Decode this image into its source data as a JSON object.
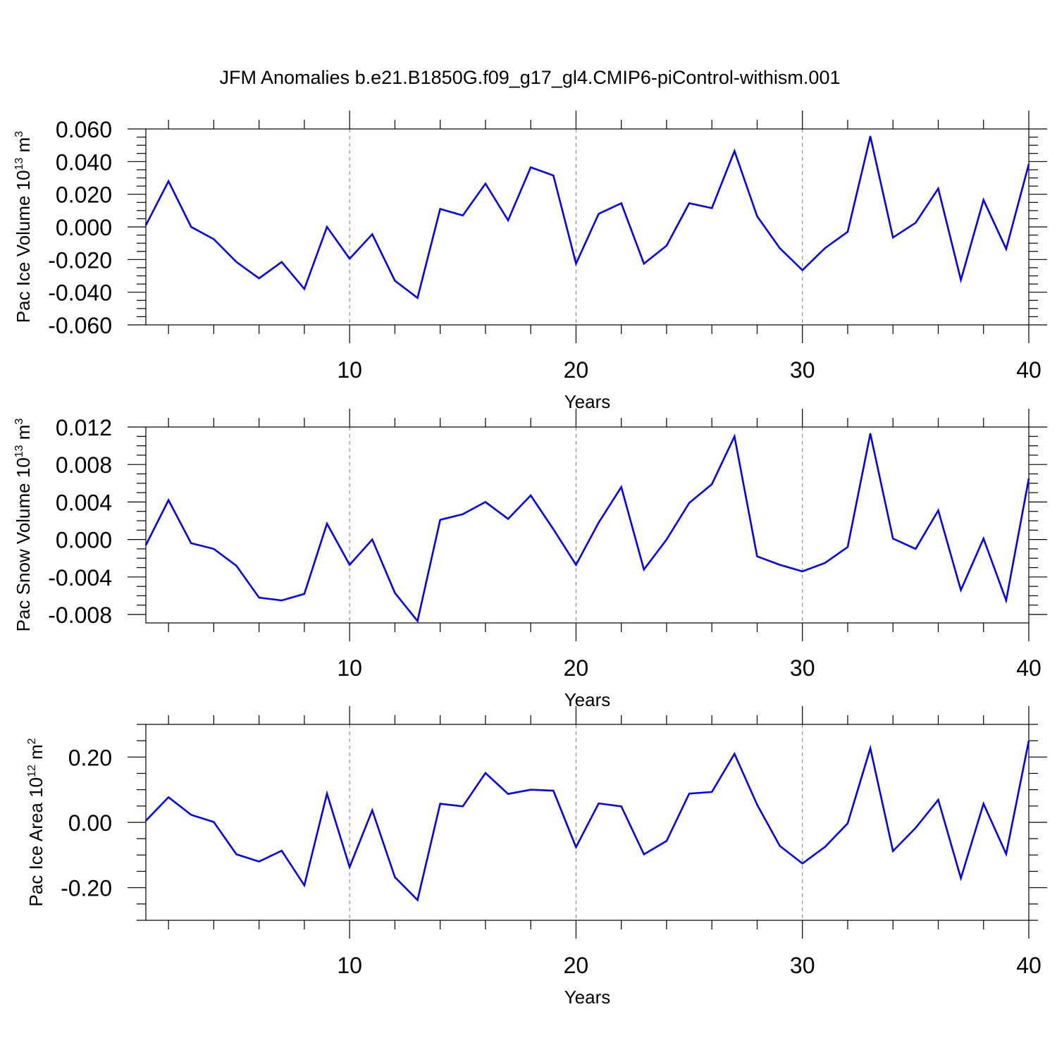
{
  "chart_data": {
    "title": "JFM Anomalies b.e21.B1850G.f09_g17_gl4.CMIP6-piControl-withism.001",
    "line_color": "#0000ff",
    "x": [
      1,
      2,
      3,
      4,
      5,
      6,
      7,
      8,
      9,
      10,
      11,
      12,
      13,
      14,
      15,
      16,
      17,
      18,
      19,
      20,
      21,
      22,
      23,
      24,
      25,
      26,
      27,
      28,
      29,
      30,
      31,
      32,
      33,
      34,
      35,
      36,
      37,
      38,
      39,
      40
    ],
    "panels": [
      {
        "type": "line",
        "xlabel": "Years",
        "ylabel": {
          "text": "Pac Ice Volume 10",
          "sup1": "13",
          "mid": " m",
          "sup2": "3"
        },
        "xlim": [
          1,
          40
        ],
        "xticks": [
          10,
          20,
          30,
          40
        ],
        "xtick_labels": [
          "10",
          "20",
          "30",
          "40"
        ],
        "ylim": [
          -0.06,
          0.06
        ],
        "yticks": [
          -0.06,
          -0.04,
          -0.02,
          0.0,
          0.02,
          0.04,
          0.06
        ],
        "ytick_labels": [
          "-0.060",
          "-0.040",
          "-0.020",
          "0.000",
          "0.020",
          "0.040",
          "0.060"
        ],
        "yminor_step": 0.005,
        "series": [
          {
            "values": [
              0.001,
              0.028,
              0.0,
              -0.0075,
              -0.0215,
              -0.0315,
              -0.0215,
              -0.038,
              0.0,
              -0.0195,
              -0.0045,
              -0.033,
              -0.0435,
              0.011,
              0.007,
              0.0265,
              0.004,
              0.0365,
              0.0315,
              -0.0225,
              0.008,
              0.0145,
              -0.0225,
              -0.0115,
              0.0145,
              0.0115,
              0.0465,
              0.0065,
              -0.013,
              -0.0265,
              -0.013,
              -0.003,
              0.0555,
              -0.0065,
              0.0025,
              0.0235,
              -0.0325,
              0.0165,
              -0.0135,
              0.0385
            ]
          }
        ]
      },
      {
        "type": "line",
        "xlabel": "Years",
        "ylabel": {
          "text": "Pac Snow Volume 10",
          "sup1": "13",
          "mid": " m",
          "sup2": "3"
        },
        "xlim": [
          1,
          40
        ],
        "xticks": [
          10,
          20,
          30,
          40
        ],
        "xtick_labels": [
          "10",
          "20",
          "30",
          "40"
        ],
        "ylim": [
          -0.0089,
          0.012
        ],
        "yticks": [
          -0.008,
          -0.004,
          0.0,
          0.004,
          0.008,
          0.012
        ],
        "ytick_labels": [
          "-0.008",
          "-0.004",
          "0.000",
          "0.004",
          "0.008",
          "0.012"
        ],
        "yminor_step": 0.001,
        "series": [
          {
            "values": [
              -0.0006,
              0.0042,
              -0.0004,
              -0.001,
              -0.0028,
              -0.0062,
              -0.0065,
              -0.0058,
              0.0017,
              -0.0027,
              0.0,
              -0.0057,
              -0.0087,
              0.0021,
              0.0027,
              0.004,
              0.0022,
              0.0047,
              0.0011,
              -0.0027,
              0.0018,
              0.0056,
              -0.0032,
              0.0,
              0.0039,
              0.0059,
              0.011,
              -0.0018,
              -0.0027,
              -0.0034,
              -0.0025,
              -0.0008,
              0.0113,
              0.0001,
              -0.001,
              0.0031,
              -0.0054,
              0.0001,
              -0.0065,
              0.0065
            ]
          }
        ]
      },
      {
        "type": "line",
        "xlabel": "Years",
        "ylabel": {
          "text": "Pac Ice Area 10",
          "sup1": "12",
          "mid": " m",
          "sup2": "2"
        },
        "xlim": [
          1,
          40
        ],
        "xticks": [
          10,
          20,
          30,
          40
        ],
        "xtick_labels": [
          "10",
          "20",
          "30",
          "40"
        ],
        "ylim": [
          -0.3,
          0.3
        ],
        "yticks": [
          -0.2,
          0.0,
          0.2
        ],
        "ytick_labels": [
          "-0.20",
          "0.00",
          "0.20"
        ],
        "yminor_step": 0.05,
        "series": [
          {
            "values": [
              0.005,
              0.077,
              0.023,
              0.001,
              -0.098,
              -0.12,
              -0.087,
              -0.193,
              0.088,
              -0.137,
              0.037,
              -0.168,
              -0.238,
              0.057,
              0.049,
              0.151,
              0.087,
              0.1,
              0.097,
              -0.076,
              0.058,
              0.049,
              -0.098,
              -0.057,
              0.088,
              0.093,
              0.21,
              0.054,
              -0.072,
              -0.126,
              -0.075,
              -0.003,
              0.227,
              -0.088,
              -0.017,
              0.069,
              -0.171,
              0.057,
              -0.097,
              0.25
            ]
          }
        ]
      }
    ]
  }
}
